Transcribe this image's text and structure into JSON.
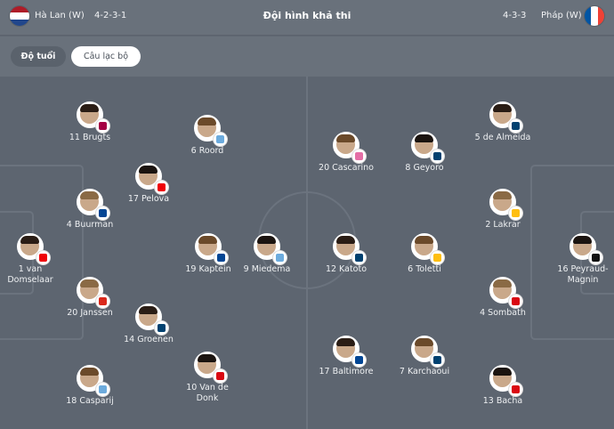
{
  "header": {
    "title": "Đội hình khả thi",
    "home": {
      "name": "Hà Lan (W)",
      "formation": "4-2-3-1",
      "flag_colors": [
        "#ae1c28",
        "#ffffff",
        "#21468b"
      ]
    },
    "away": {
      "name": "Pháp (W)",
      "formation": "4-3-3",
      "flag_colors": [
        "#0055a4",
        "#ffffff",
        "#ef4135"
      ]
    }
  },
  "toolbar": {
    "tabs": [
      {
        "label": "Độ tuổi",
        "active": false
      },
      {
        "label": "Câu lạc bộ",
        "active": true
      }
    ]
  },
  "club_colors": {
    "barcelona": "#a50044",
    "man-city": "#6cabdd",
    "arsenal": "#ef0107",
    "chelsea": "#034694",
    "man-utd": "#da291c",
    "psg": "#004170",
    "real-madrid": "#febe10",
    "lyon": "#da0812",
    "juventus": "#111111",
    "san-diego": "#e46fa6"
  },
  "home_players": [
    {
      "label": "11 Brugts",
      "club": "barcelona"
    },
    {
      "label": "6 Roord",
      "club": "man-city"
    },
    {
      "label": "17 Pelova",
      "club": "arsenal"
    },
    {
      "label": "4 Buurman",
      "club": "chelsea"
    },
    {
      "label": "1 van Domselaar",
      "club": "arsenal"
    },
    {
      "label": "19 Kaptein",
      "club": "chelsea"
    },
    {
      "label": "9 Miedema",
      "club": "man-city"
    },
    {
      "label": "20 Janssen",
      "club": "man-utd"
    },
    {
      "label": "14 Groenen",
      "club": "psg"
    },
    {
      "label": "18 Casparij",
      "club": "man-city"
    },
    {
      "label": "10 Van de Donk",
      "club": "lyon"
    }
  ],
  "away_players": [
    {
      "label": "5 de Almeida",
      "club": "psg"
    },
    {
      "label": "20 Cascarino",
      "club": "san-diego"
    },
    {
      "label": "8 Geyoro",
      "club": "psg"
    },
    {
      "label": "2 Lakrar",
      "club": "real-madrid"
    },
    {
      "label": "12 Katoto",
      "club": "psg"
    },
    {
      "label": "6 Toletti",
      "club": "real-madrid"
    },
    {
      "label": "16 Peyraud-Magnin",
      "club": "juventus"
    },
    {
      "label": "4 Sombath",
      "club": "lyon"
    },
    {
      "label": "17 Baltimore",
      "club": "chelsea"
    },
    {
      "label": "7 Karchaoui",
      "club": "psg"
    },
    {
      "label": "13 Bacha",
      "club": "lyon"
    }
  ]
}
